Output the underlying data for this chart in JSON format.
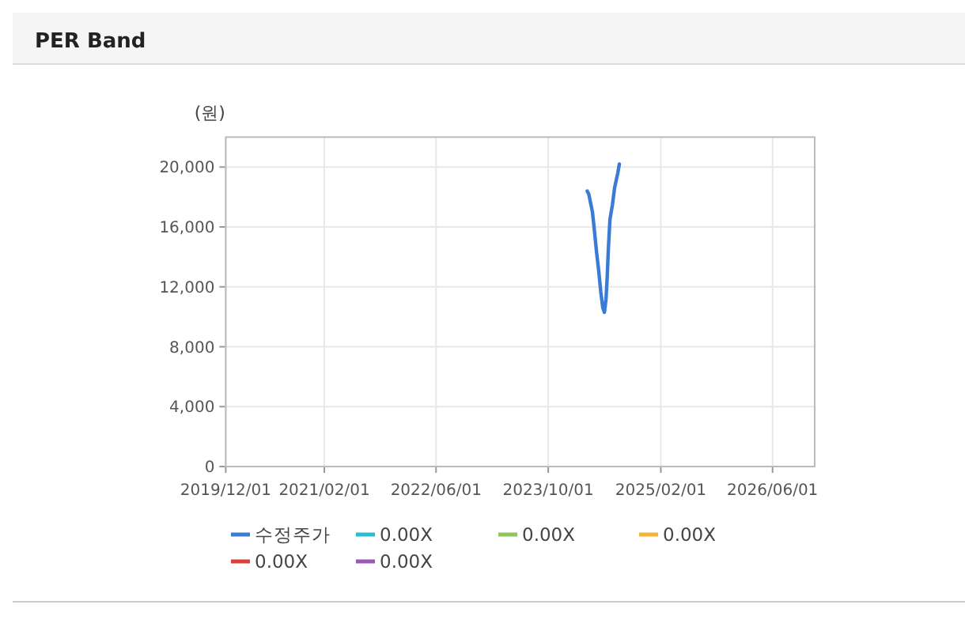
{
  "chart_data": {
    "type": "line",
    "title": "PER Band",
    "ylabel": "(원)",
    "xlim": [
      "2019-12-01",
      "2026-12-01"
    ],
    "ylim": [
      0,
      22000
    ],
    "xticks": [
      {
        "value": "2019-12-01",
        "label": "2019/12/01"
      },
      {
        "value": "2021-02-01",
        "label": "2021/02/01"
      },
      {
        "value": "2022-06-01",
        "label": "2022/06/01"
      },
      {
        "value": "2023-10-01",
        "label": "2023/10/01"
      },
      {
        "value": "2025-02-01",
        "label": "2025/02/01"
      },
      {
        "value": "2026-06-01",
        "label": "2026/06/01"
      }
    ],
    "yticks": [
      {
        "value": 0,
        "label": "0"
      },
      {
        "value": 4000,
        "label": "4,000"
      },
      {
        "value": 8000,
        "label": "8,000"
      },
      {
        "value": 12000,
        "label": "12,000"
      },
      {
        "value": 16000,
        "label": "16,000"
      },
      {
        "value": 20000,
        "label": "20,000"
      }
    ],
    "grid": true,
    "legend": "bottom",
    "marker": "none",
    "line_style": "solid",
    "series": [
      {
        "name": "수정주가",
        "color": "#3a7bd5",
        "x": [
          "2024-03-18",
          "2024-03-25",
          "2024-04-10",
          "2024-04-19",
          "2024-04-28",
          "2024-05-07",
          "2024-05-16",
          "2024-05-25",
          "2024-06-01",
          "2024-06-08",
          "2024-06-13",
          "2024-06-18",
          "2024-06-25",
          "2024-07-06",
          "2024-07-15",
          "2024-07-29",
          "2024-08-05"
        ],
        "values": [
          18400,
          18200,
          17000,
          15700,
          14300,
          13100,
          11700,
          10600,
          10300,
          11200,
          12600,
          14500,
          16500,
          17500,
          18600,
          19600,
          20200
        ]
      },
      {
        "name": "0.00X",
        "color": "#2bbcd0"
      },
      {
        "name": "0.00X",
        "color": "#8fc655"
      },
      {
        "name": "0.00X",
        "color": "#f5b335"
      },
      {
        "name": "0.00X",
        "color": "#d9413a"
      },
      {
        "name": "0.00X",
        "color": "#9b59b6"
      }
    ]
  }
}
